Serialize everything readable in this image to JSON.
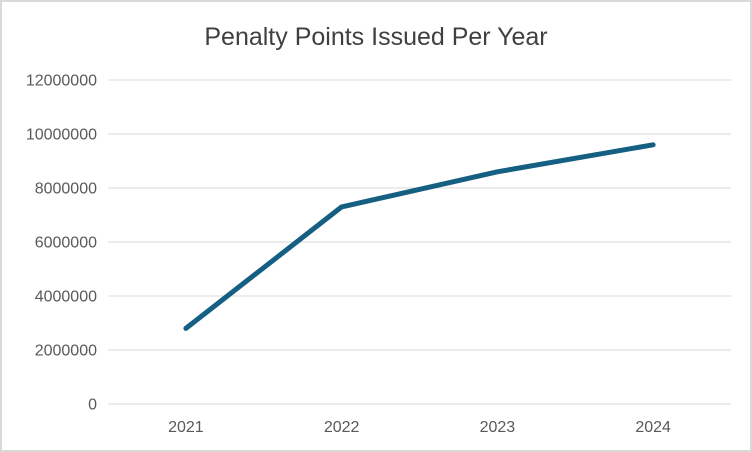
{
  "chart_data": {
    "type": "line",
    "title": "Penalty Points Issued Per Year",
    "categories": [
      "2021",
      "2022",
      "2023",
      "2024"
    ],
    "values": [
      2800000,
      7300000,
      8600000,
      9600000
    ],
    "xlabel": "",
    "ylabel": "",
    "ylim": [
      0,
      12000000
    ],
    "yticks": [
      0,
      2000000,
      4000000,
      6000000,
      8000000,
      10000000,
      12000000
    ],
    "grid": true,
    "legend": false,
    "colors": {
      "line": "#156082",
      "gridline": "#D9D9D9",
      "tick_label": "#595959",
      "title": "#404040",
      "background": "#FFFFFF",
      "border": "#D9D9D9"
    }
  }
}
